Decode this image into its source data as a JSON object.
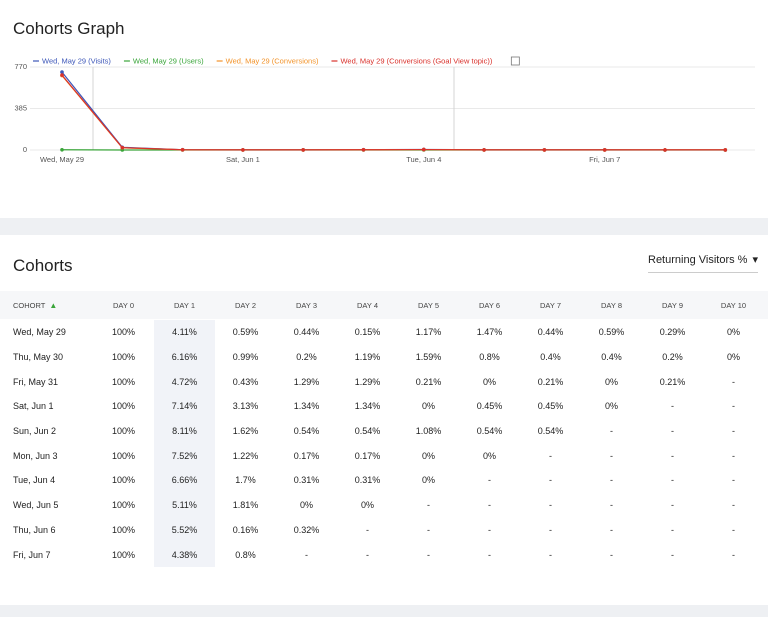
{
  "chart_data": {
    "type": "line",
    "title": "Cohorts Graph",
    "categories": [
      "Wed, May 29",
      null,
      null,
      "Sat, Jun 1",
      null,
      null,
      "Tue, Jun 4",
      null,
      null,
      "Fri, Jun 7",
      null,
      null
    ],
    "series": [
      {
        "name": "Wed, May 29 (Visits)",
        "color": "#3c56b8",
        "values": [
          723,
          25,
          3,
          2,
          2,
          3,
          5,
          2,
          2,
          2,
          1,
          1
        ]
      },
      {
        "name": "Wed, May 29 (Users)",
        "color": "#3aa53a",
        "values": [
          2,
          0,
          0,
          0,
          0,
          0,
          0,
          0,
          0,
          0,
          0,
          0
        ]
      },
      {
        "name": "Wed, May 29 (Conversions)",
        "color": "#f2932a",
        "values": [
          690,
          20,
          2,
          1,
          1,
          2,
          4,
          1,
          1,
          1,
          1,
          1
        ]
      },
      {
        "name": "Wed, May 29 (Conversions (Goal View topic))",
        "color": "#d9312b",
        "values": [
          695,
          22,
          2,
          1,
          1,
          2,
          4,
          1,
          1,
          1,
          1,
          1
        ]
      }
    ],
    "ylim": [
      0,
      770
    ],
    "yticks": [
      0,
      385,
      770
    ],
    "grid": true
  },
  "cohorts": {
    "title": "Cohorts",
    "metric": "Returning Visitors %",
    "header": [
      "COHORT",
      "DAY 0",
      "DAY 1",
      "DAY 2",
      "DAY 3",
      "DAY 4",
      "DAY 5",
      "DAY 6",
      "DAY 7",
      "DAY 8",
      "DAY 9",
      "DAY 10"
    ],
    "rows": [
      [
        "Wed, May 29",
        "100%",
        "4.11%",
        "0.59%",
        "0.44%",
        "0.15%",
        "1.17%",
        "1.47%",
        "0.44%",
        "0.59%",
        "0.29%",
        "0%"
      ],
      [
        "Thu, May 30",
        "100%",
        "6.16%",
        "0.99%",
        "0.2%",
        "1.19%",
        "1.59%",
        "0.8%",
        "0.4%",
        "0.4%",
        "0.2%",
        "0%"
      ],
      [
        "Fri, May 31",
        "100%",
        "4.72%",
        "0.43%",
        "1.29%",
        "1.29%",
        "0.21%",
        "0%",
        "0.21%",
        "0%",
        "0.21%",
        "-"
      ],
      [
        "Sat, Jun 1",
        "100%",
        "7.14%",
        "3.13%",
        "1.34%",
        "1.34%",
        "0%",
        "0.45%",
        "0.45%",
        "0%",
        "-",
        "-"
      ],
      [
        "Sun, Jun 2",
        "100%",
        "8.11%",
        "1.62%",
        "0.54%",
        "0.54%",
        "1.08%",
        "0.54%",
        "0.54%",
        "-",
        "-",
        "-"
      ],
      [
        "Mon, Jun 3",
        "100%",
        "7.52%",
        "1.22%",
        "0.17%",
        "0.17%",
        "0%",
        "0%",
        "-",
        "-",
        "-",
        "-"
      ],
      [
        "Tue, Jun 4",
        "100%",
        "6.66%",
        "1.7%",
        "0.31%",
        "0.31%",
        "0%",
        "-",
        "-",
        "-",
        "-",
        "-"
      ],
      [
        "Wed, Jun 5",
        "100%",
        "5.11%",
        "1.81%",
        "0%",
        "0%",
        "-",
        "-",
        "-",
        "-",
        "-",
        "-"
      ],
      [
        "Thu, Jun 6",
        "100%",
        "5.52%",
        "0.16%",
        "0.32%",
        "-",
        "-",
        "-",
        "-",
        "-",
        "-",
        "-"
      ],
      [
        "Fri, Jun 7",
        "100%",
        "4.38%",
        "0.8%",
        "-",
        "-",
        "-",
        "-",
        "-",
        "-",
        "-",
        "-"
      ]
    ]
  }
}
